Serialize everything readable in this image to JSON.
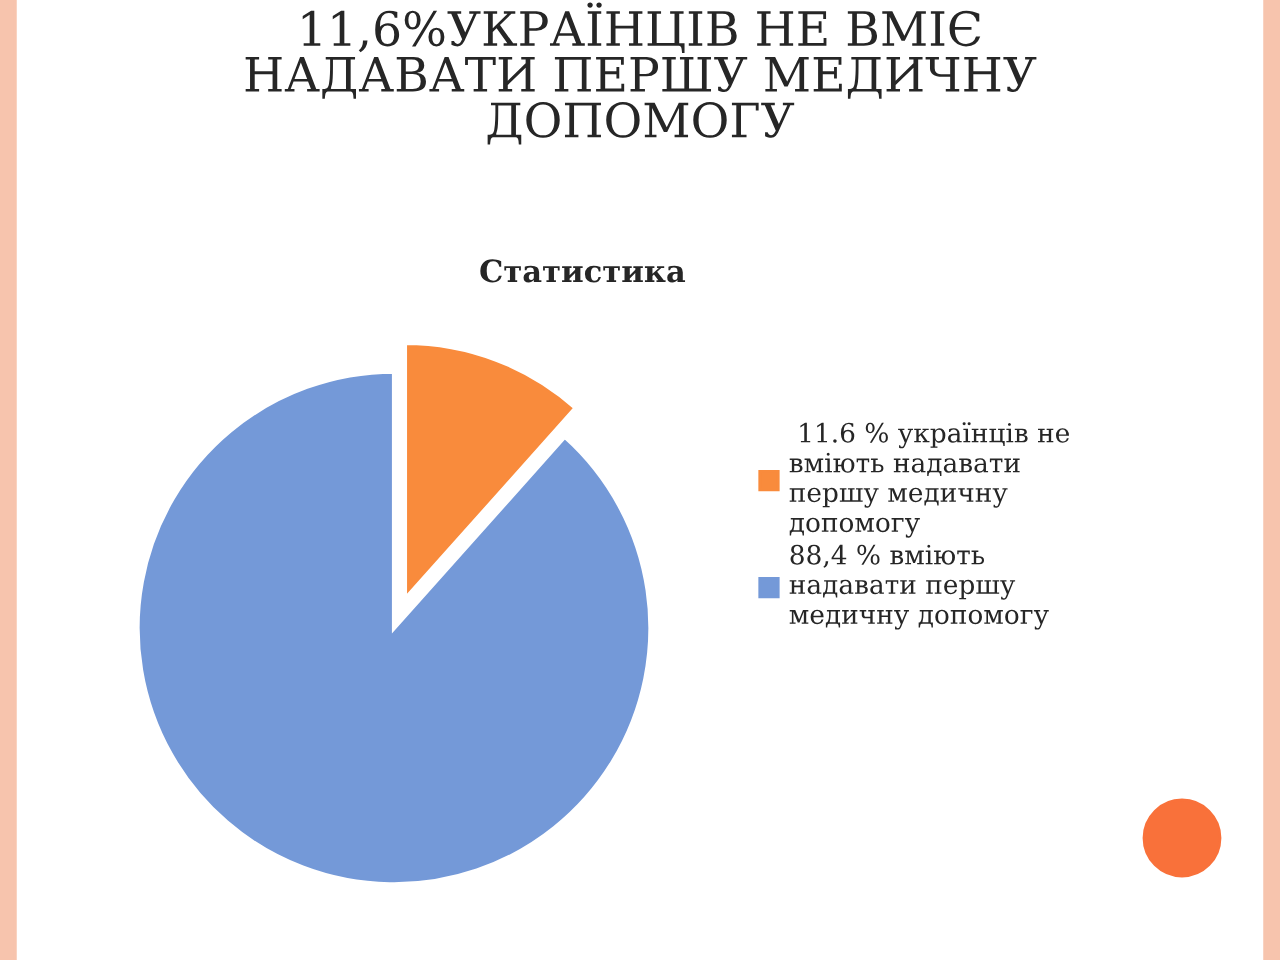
{
  "chart_data": {
    "type": "pie",
    "title": "11,6%УКРАЇНЦІВ НЕ ВМІЄ\nНАДАВАТИ ПЕРШУ МЕДИЧНУ\nДОПОМОГУ",
    "subtitle": "Статистика",
    "categories": [
      " 11.6 % українців не\nвміють надавати\nпершу медичну\nдопомогу",
      "88,4 % вміють\nнадавати першу\nмедичну допомогу"
    ],
    "values": [
      11.6,
      88.4
    ],
    "colors": [
      "#f98b3c",
      "#7499d8"
    ],
    "legend": "right"
  }
}
